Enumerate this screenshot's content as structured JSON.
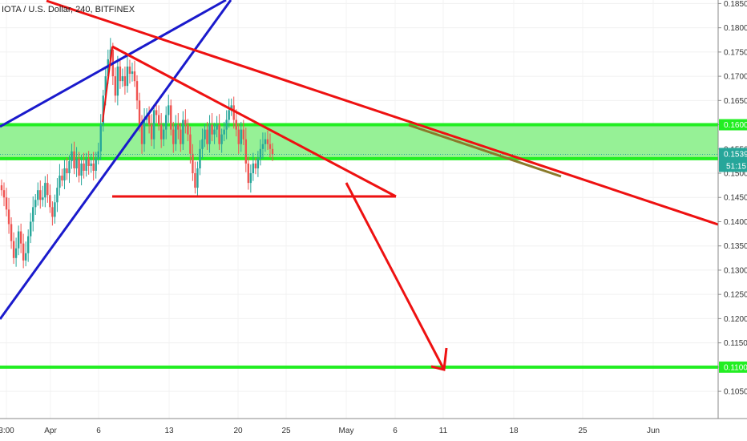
{
  "symbol_label": "IOTA / U.S. Dollar, 240, BITFINEX",
  "colors": {
    "up": "#26a69a",
    "down": "#ef5350",
    "zone_fill": "#90f090",
    "zone_line": "#22ee22",
    "red_line": "#ee1111",
    "blue_line": "#1a1acc",
    "overlap": "#8a7a2a"
  },
  "chart_data": {
    "type": "candlestick",
    "y_axis": {
      "ticks": [
        "0.1850",
        "0.1800",
        "0.1750",
        "0.1700",
        "0.1650",
        "0.1600",
        "0.1550",
        "0.1500",
        "0.1450",
        "0.1400",
        "0.1350",
        "0.1300",
        "0.1250",
        "0.1200",
        "0.1150",
        "0.1100",
        "0.1050"
      ],
      "range": [
        0.1022,
        0.1854
      ]
    },
    "x_axis": {
      "ticks": [
        "3:00",
        "Apr",
        "6",
        "13",
        "20",
        "25",
        "May",
        "6",
        "11",
        "18",
        "25",
        "Jun"
      ]
    },
    "current_price": "0.1539",
    "countdown": "51:15",
    "zone": {
      "top": 0.16,
      "bottom": 0.153,
      "top_label": "0.1600",
      "bottom_label": "0.1530"
    },
    "support_line": {
      "value": 0.11,
      "label": "0.1100"
    },
    "candles_close": [
      0.1465,
      0.145,
      0.1425,
      0.1395,
      0.136,
      0.1325,
      0.1345,
      0.138,
      0.1355,
      0.132,
      0.1335,
      0.137,
      0.14,
      0.143,
      0.1445,
      0.1465,
      0.1445,
      0.145,
      0.148,
      0.1455,
      0.143,
      0.141,
      0.144,
      0.147,
      0.1495,
      0.1485,
      0.151,
      0.15,
      0.1525,
      0.1545,
      0.151,
      0.153,
      0.1495,
      0.152,
      0.1505,
      0.153,
      0.1515,
      0.152,
      0.1505,
      0.153,
      0.1545,
      0.16,
      0.166,
      0.17,
      0.1735,
      0.1755,
      0.17,
      0.166,
      0.172,
      0.169,
      0.17,
      0.168,
      0.172,
      0.1705,
      0.171,
      0.169,
      0.165,
      0.16,
      0.156,
      0.161,
      0.162,
      0.16,
      0.157,
      0.163,
      0.162,
      0.16,
      0.157,
      0.159,
      0.162,
      0.164,
      0.159,
      0.156,
      0.16,
      0.159,
      0.156,
      0.161,
      0.16,
      0.158,
      0.154,
      0.15,
      0.147,
      0.151,
      0.155,
      0.157,
      0.159,
      0.156,
      0.16,
      0.158,
      0.159,
      0.16,
      0.156,
      0.158,
      0.159,
      0.161,
      0.163,
      0.164,
      0.161,
      0.159,
      0.156,
      0.159,
      0.157,
      0.152,
      0.148,
      0.15,
      0.152,
      0.151,
      0.153,
      0.155,
      0.156,
      0.157,
      0.156,
      0.155,
      0.1539
    ]
  }
}
